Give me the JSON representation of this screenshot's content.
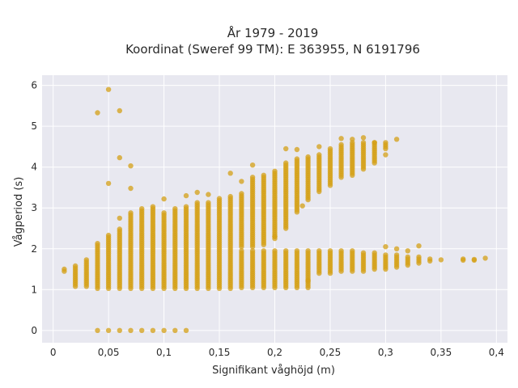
{
  "chart_data": {
    "type": "scatter",
    "title_line1": "År 1979 - 2019",
    "title_line2": "Koordinat (Sweref 99 TM): E 363955, N 6191796",
    "xlabel": "Signifikant våghöjd (m)",
    "ylabel": "Vågperiod (s)",
    "xlim": [
      -0.01,
      0.41
    ],
    "ylim": [
      -0.3,
      6.25
    ],
    "xticks": [
      0,
      0.05,
      0.1,
      0.15,
      0.2,
      0.25,
      0.3,
      0.35,
      0.4
    ],
    "xtick_labels": [
      "0",
      "0,05",
      "0,1",
      "0,15",
      "0,2",
      "0,25",
      "0,3",
      "0,35",
      "0,4"
    ],
    "yticks": [
      0,
      1,
      2,
      3,
      4,
      5,
      6
    ],
    "ytick_labels": [
      "0",
      "1",
      "2",
      "3",
      "4",
      "5",
      "6"
    ],
    "grid": true,
    "background": "#e8e8f0",
    "marker_color": "#d4a017",
    "columns": [
      {
        "x": 0.01,
        "low": [
          [
            1.45,
            1.5
          ]
        ]
      },
      {
        "x": 0.02,
        "low": [
          [
            1.08,
            1.6
          ]
        ]
      },
      {
        "x": 0.03,
        "low": [
          [
            1.08,
            1.75
          ]
        ]
      },
      {
        "x": 0.04,
        "low": [
          [
            1.03,
            2.15
          ]
        ]
      },
      {
        "x": 0.05,
        "low": [
          [
            1.03,
            2.35
          ]
        ]
      },
      {
        "x": 0.06,
        "low": [
          [
            1.03,
            2.5
          ]
        ]
      },
      {
        "x": 0.07,
        "low": [
          [
            1.03,
            2.9
          ]
        ]
      },
      {
        "x": 0.08,
        "low": [
          [
            1.03,
            3.0
          ]
        ]
      },
      {
        "x": 0.09,
        "low": [
          [
            1.03,
            3.05
          ]
        ]
      },
      {
        "x": 0.1,
        "low": [
          [
            1.03,
            2.9
          ]
        ]
      },
      {
        "x": 0.11,
        "low": [
          [
            1.03,
            3.0
          ]
        ]
      },
      {
        "x": 0.12,
        "low": [
          [
            1.03,
            3.05
          ]
        ]
      },
      {
        "x": 0.13,
        "low": [
          [
            1.03,
            3.15
          ]
        ]
      },
      {
        "x": 0.14,
        "low": [
          [
            1.03,
            3.15
          ]
        ]
      },
      {
        "x": 0.15,
        "low": [
          [
            1.03,
            3.25
          ]
        ]
      },
      {
        "x": 0.16,
        "low": [
          [
            1.03,
            3.3
          ]
        ]
      },
      {
        "x": 0.17,
        "low": [
          [
            1.05,
            1.95
          ],
          [
            2.05,
            3.35
          ]
        ]
      },
      {
        "x": 0.18,
        "low": [
          [
            1.05,
            1.95
          ],
          [
            2.05,
            3.75
          ]
        ]
      },
      {
        "x": 0.19,
        "low": [
          [
            1.05,
            1.95
          ],
          [
            2.1,
            3.8
          ]
        ]
      },
      {
        "x": 0.2,
        "low": [
          [
            1.05,
            1.95
          ],
          [
            2.25,
            3.9
          ]
        ]
      },
      {
        "x": 0.21,
        "low": [
          [
            1.05,
            1.95
          ],
          [
            2.5,
            4.1
          ]
        ]
      },
      {
        "x": 0.22,
        "low": [
          [
            1.05,
            1.95
          ],
          [
            2.95,
            4.2
          ]
        ]
      },
      {
        "x": 0.23,
        "low": [
          [
            1.05,
            1.95
          ],
          [
            3.2,
            4.25
          ]
        ]
      },
      {
        "x": 0.24,
        "low": [
          [
            1.4,
            1.95
          ],
          [
            3.4,
            4.3
          ]
        ]
      },
      {
        "x": 0.25,
        "low": [
          [
            1.4,
            1.95
          ],
          [
            3.55,
            4.45
          ]
        ]
      },
      {
        "x": 0.26,
        "low": [
          [
            1.45,
            1.95
          ],
          [
            3.75,
            4.55
          ]
        ]
      },
      {
        "x": 0.27,
        "low": [
          [
            1.45,
            1.95
          ],
          [
            3.8,
            4.6
          ]
        ]
      },
      {
        "x": 0.28,
        "low": [
          [
            1.45,
            1.9
          ],
          [
            3.95,
            4.6
          ]
        ]
      },
      {
        "x": 0.29,
        "low": [
          [
            1.5,
            1.9
          ],
          [
            4.1,
            4.6
          ]
        ]
      },
      {
        "x": 0.3,
        "low": [
          [
            1.5,
            1.85
          ],
          [
            4.45,
            4.6
          ]
        ]
      },
      {
        "x": 0.31,
        "low": [
          [
            1.55,
            1.85
          ]
        ]
      },
      {
        "x": 0.32,
        "low": [
          [
            1.6,
            1.8
          ]
        ]
      },
      {
        "x": 0.33,
        "low": [
          [
            1.65,
            1.8
          ]
        ]
      },
      {
        "x": 0.34,
        "low": [
          [
            1.7,
            1.75
          ]
        ]
      }
    ],
    "zero_points_x": [
      0.04,
      0.05,
      0.06,
      0.07,
      0.08,
      0.09,
      0.1,
      0.11,
      0.12
    ],
    "outliers": [
      [
        0.05,
        5.9
      ],
      [
        0.04,
        5.33
      ],
      [
        0.06,
        5.38
      ],
      [
        0.06,
        4.23
      ],
      [
        0.07,
        4.03
      ],
      [
        0.05,
        3.6
      ],
      [
        0.07,
        3.48
      ],
      [
        0.06,
        2.75
      ],
      [
        0.1,
        3.22
      ],
      [
        0.12,
        3.3
      ],
      [
        0.13,
        3.38
      ],
      [
        0.14,
        3.33
      ],
      [
        0.16,
        3.85
      ],
      [
        0.17,
        3.65
      ],
      [
        0.18,
        4.05
      ],
      [
        0.21,
        4.45
      ],
      [
        0.22,
        4.43
      ],
      [
        0.24,
        4.5
      ],
      [
        0.26,
        4.7
      ],
      [
        0.27,
        4.68
      ],
      [
        0.28,
        4.72
      ],
      [
        0.29,
        4.6
      ],
      [
        0.3,
        4.3
      ],
      [
        0.31,
        4.68
      ],
      [
        0.22,
        2.9
      ],
      [
        0.225,
        3.05
      ],
      [
        0.23,
        1.22
      ],
      [
        0.2,
        2.3
      ],
      [
        0.3,
        2.05
      ],
      [
        0.31,
        2.0
      ],
      [
        0.33,
        2.07
      ],
      [
        0.32,
        1.95
      ],
      [
        0.35,
        1.73
      ],
      [
        0.37,
        1.75
      ],
      [
        0.38,
        1.74
      ],
      [
        0.39,
        1.77
      ],
      [
        0.37,
        1.72
      ],
      [
        0.38,
        1.72
      ]
    ]
  }
}
